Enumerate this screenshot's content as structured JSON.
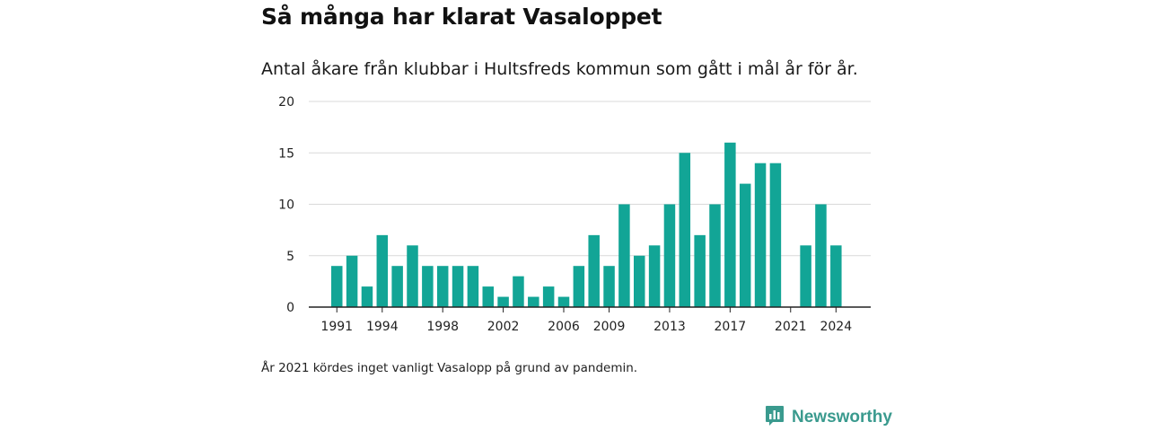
{
  "chart_data": {
    "type": "bar",
    "title": "Så många har klarat Vasaloppet",
    "subtitle": "Antal åkare från klubbar i Hultsfreds kommun som gått i mål år för år.",
    "x": [
      1991,
      1992,
      1993,
      1994,
      1995,
      1996,
      1997,
      1998,
      1999,
      2000,
      2001,
      2002,
      2003,
      2004,
      2005,
      2006,
      2007,
      2008,
      2009,
      2010,
      2011,
      2012,
      2013,
      2014,
      2015,
      2016,
      2017,
      2018,
      2019,
      2020,
      2021,
      2022,
      2023,
      2024
    ],
    "values": [
      4,
      5,
      2,
      7,
      4,
      6,
      4,
      4,
      4,
      4,
      2,
      1,
      3,
      1,
      2,
      1,
      4,
      7,
      4,
      10,
      5,
      6,
      10,
      15,
      7,
      10,
      16,
      12,
      14,
      14,
      null,
      6,
      10,
      6
    ],
    "x_tick_labels": [
      "1991",
      "1994",
      "1998",
      "2002",
      "2006",
      "2009",
      "2013",
      "2017",
      "2021",
      "2024"
    ],
    "y_tick_labels": [
      "0",
      "5",
      "10",
      "15",
      "20"
    ],
    "ylim": [
      0,
      20
    ],
    "xlabel": "",
    "ylabel": "",
    "grid": true,
    "bar_color": "#12a596",
    "note": "År 2021 kördes inget vanligt Vasalopp på grund av pandemin."
  },
  "brand": {
    "name": "Newsworthy",
    "logo_icon": "newsworthy-logo-icon",
    "color": "#3a9a8e"
  }
}
